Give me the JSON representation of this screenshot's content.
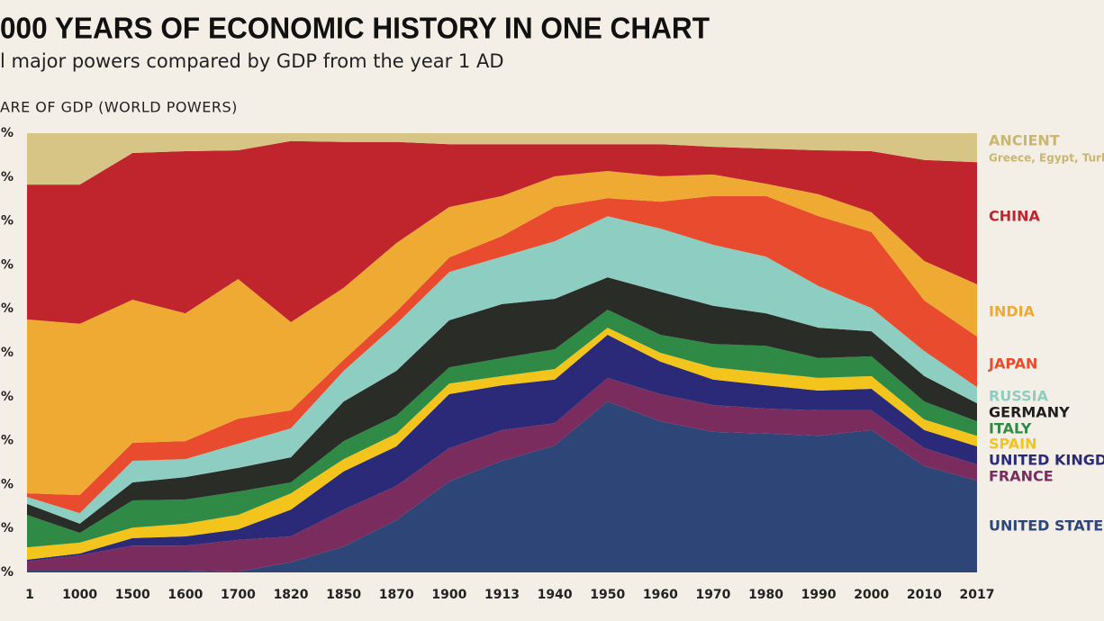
{
  "chart_data": {
    "type": "stacked_area",
    "title": "000 YEARS OF ECONOMIC HISTORY IN ONE CHART",
    "subtitle": "l major powers compared by GDP from the year 1 AD",
    "y_label": "ARE OF GDP (WORLD POWERS)",
    "categories": [
      "1",
      "1000",
      "1500",
      "1600",
      "1700",
      "1820",
      "1850",
      "1870",
      "1900",
      "1913",
      "1940",
      "1950",
      "1960",
      "1970",
      "1980",
      "1990",
      "2000",
      "2010",
      "2017"
    ],
    "ylim": [
      0,
      100
    ],
    "yticks": [
      {
        "value": 0,
        "label": "%"
      },
      {
        "value": 10,
        "label": "%"
      },
      {
        "value": 20,
        "label": "%"
      },
      {
        "value": 30,
        "label": "%"
      },
      {
        "value": 40,
        "label": "%"
      },
      {
        "value": 50,
        "label": "%"
      },
      {
        "value": 60,
        "label": "%"
      },
      {
        "value": 70,
        "label": "%"
      },
      {
        "value": 80,
        "label": "%"
      },
      {
        "value": 90,
        "label": "%"
      },
      {
        "value": 100,
        "label": "%"
      }
    ],
    "series": [
      {
        "name": "UNITED STATE",
        "color": "#2e4577",
        "values": [
          0.4,
          0.4,
          0.4,
          0.4,
          0.2,
          2.3,
          5.9,
          11.9,
          20.7,
          25.4,
          28.9,
          38.9,
          34.4,
          32.0,
          31.6,
          31.1,
          32.4,
          24.2,
          20.9
        ]
      },
      {
        "name": "FRANCE",
        "color": "#7b2c5e",
        "values": [
          2.1,
          3.5,
          5.7,
          5.7,
          7.2,
          5.9,
          8.4,
          7.8,
          7.6,
          7.0,
          5.1,
          5.4,
          6.2,
          6.1,
          5.7,
          5.8,
          4.5,
          4.1,
          3.7
        ]
      },
      {
        "name": "UNITED KINGD",
        "color": "#2a2a78",
        "values": [
          0.4,
          0.4,
          1.7,
          2.1,
          2.4,
          6.1,
          8.7,
          9.0,
          12.3,
          10.2,
          9.9,
          9.8,
          7.4,
          5.8,
          5.3,
          4.5,
          4.9,
          4.1,
          4.1
        ]
      },
      {
        "name": "SPAIN",
        "color": "#f2c41c",
        "values": [
          2.8,
          2.5,
          2.4,
          2.9,
          3.3,
          3.7,
          2.8,
          2.9,
          2.4,
          2.1,
          2.4,
          1.6,
          2.0,
          2.8,
          2.9,
          2.9,
          2.9,
          2.4,
          2.4
        ]
      },
      {
        "name": "ITALY",
        "color": "#2f8a45",
        "values": [
          7.4,
          2.2,
          6.2,
          5.5,
          5.3,
          2.5,
          4.1,
          4.1,
          3.7,
          4.1,
          4.5,
          4.1,
          4.1,
          5.3,
          6.1,
          4.5,
          4.5,
          4.1,
          3.3
        ]
      },
      {
        "name": "GERMANY",
        "color": "#2a2c28",
        "values": [
          2.5,
          2.1,
          4.1,
          5.1,
          5.4,
          5.7,
          9.0,
          10.2,
          10.7,
          12.3,
          11.5,
          7.4,
          9.8,
          8.7,
          7.4,
          6.9,
          5.7,
          5.8,
          4.1
        ]
      },
      {
        "name": "RUSSIA",
        "color": "#8ecdc1",
        "values": [
          1.6,
          2.4,
          4.9,
          4.1,
          5.5,
          6.6,
          7.0,
          10.7,
          11.0,
          10.8,
          13.1,
          13.9,
          14.4,
          13.9,
          12.9,
          9.5,
          5.3,
          5.7,
          3.7
        ]
      },
      {
        "name": "JAPAN",
        "color": "#e84b2d",
        "values": [
          0.8,
          4.1,
          4.1,
          4.1,
          5.7,
          4.1,
          2.5,
          2.8,
          3.3,
          4.7,
          7.8,
          4.1,
          6.1,
          11.1,
          13.8,
          15.9,
          17.3,
          11.5,
          11.5
        ]
      },
      {
        "name": "INDIA",
        "color": "#eeaa33",
        "values": [
          39.6,
          39.0,
          32.6,
          29.1,
          31.8,
          20.1,
          16.4,
          15.6,
          11.5,
          9.1,
          7.0,
          6.2,
          5.8,
          4.9,
          2.8,
          5.0,
          4.5,
          9.0,
          11.9
        ]
      },
      {
        "name": "CHINA",
        "color": "#c0242c",
        "values": [
          30.7,
          31.7,
          33.4,
          36.9,
          29.3,
          41.2,
          33.2,
          23.0,
          14.3,
          11.8,
          7.3,
          6.1,
          7.3,
          6.3,
          8.0,
          10.0,
          13.9,
          23.0,
          27.8
        ]
      },
      {
        "name": "ANCIENT",
        "color": "#d6c585",
        "annotation": "Greece, Egypt, Turke",
        "values": [
          11.7,
          11.7,
          4.5,
          4.1,
          3.9,
          1.8,
          2.0,
          2.0,
          2.5,
          2.5,
          2.5,
          2.5,
          2.5,
          3.1,
          3.5,
          3.9,
          4.1,
          6.1,
          6.6
        ]
      }
    ]
  }
}
